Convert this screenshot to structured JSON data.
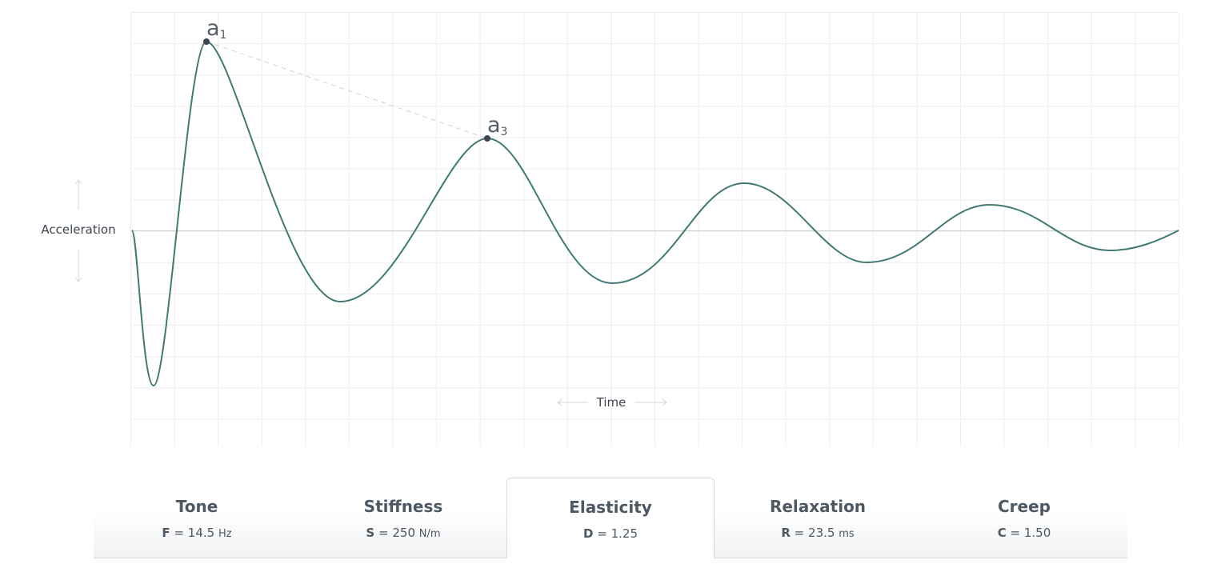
{
  "chart": {
    "y_label": "Acceleration",
    "x_label": "Time",
    "markers": [
      {
        "letter": "a",
        "subscript": "1"
      },
      {
        "letter": "a",
        "subscript": "3"
      }
    ]
  },
  "tabs": [
    {
      "title": "Tone",
      "symbol": "F",
      "equals": "=",
      "value": "14.5",
      "unit": "Hz",
      "selected": false
    },
    {
      "title": "Stiffness",
      "symbol": "S",
      "equals": "=",
      "value": "250",
      "unit": "N/m",
      "selected": false
    },
    {
      "title": "Elasticity",
      "symbol": "D",
      "equals": "=",
      "value": "1.25",
      "unit": null,
      "selected": true
    },
    {
      "title": "Relaxation",
      "symbol": "R",
      "equals": "=",
      "value": "23.5",
      "unit": "ms",
      "selected": false
    },
    {
      "title": "Creep",
      "symbol": "C",
      "equals": "=",
      "value": "1.50",
      "unit": null,
      "selected": false
    }
  ]
}
